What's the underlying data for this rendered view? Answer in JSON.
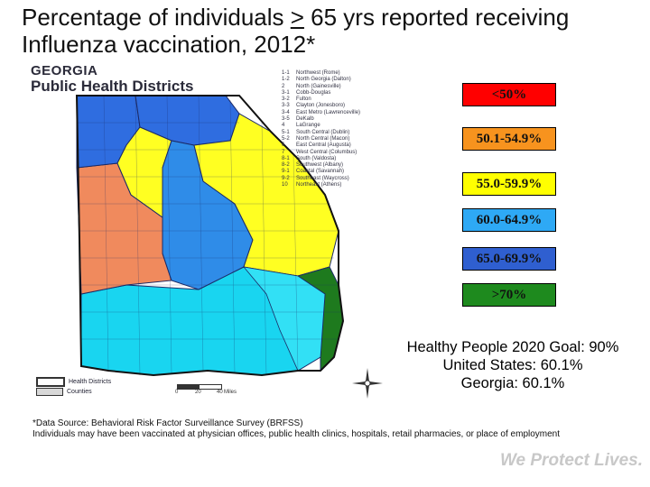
{
  "title": {
    "part1": "Percentage of individuals ",
    "gte": ">",
    "part2": " 65 yrs reported receiving",
    "line2": "Influenza vaccination, 2012*"
  },
  "map": {
    "heading_line1": "GEORGIA",
    "heading_line2": "Public Health Districts",
    "districts": [
      {
        "num": "1-1",
        "name": "Northwest (Rome)"
      },
      {
        "num": "1-2",
        "name": "North Georgia (Dalton)"
      },
      {
        "num": "2",
        "name": "North (Gainesville)"
      },
      {
        "num": "3-1",
        "name": "Cobb-Douglas"
      },
      {
        "num": "3-2",
        "name": "Fulton"
      },
      {
        "num": "3-3",
        "name": "Clayton (Jonesboro)"
      },
      {
        "num": "3-4",
        "name": "East Metro (Lawrenceville)"
      },
      {
        "num": "3-5",
        "name": "DeKalb"
      },
      {
        "num": "4",
        "name": "LaGrange"
      },
      {
        "num": "5-1",
        "name": "South Central (Dublin)"
      },
      {
        "num": "5-2",
        "name": "North Central (Macon)"
      },
      {
        "num": "6",
        "name": "East Central (Augusta)"
      },
      {
        "num": "7",
        "name": "West Central (Columbus)"
      },
      {
        "num": "8-1",
        "name": "South (Valdosta)"
      },
      {
        "num": "8-2",
        "name": "Southwest (Albany)"
      },
      {
        "num": "9-1",
        "name": "Coastal (Savannah)"
      },
      {
        "num": "9-2",
        "name": "Southeast (Waycross)"
      },
      {
        "num": "10",
        "name": "Northeast (Athens)"
      }
    ],
    "key": {
      "health_districts": "Health Districts",
      "counties": "Counties"
    },
    "scale": {
      "t0": "0",
      "t1": "20",
      "t2": "40",
      "unit": "Miles"
    }
  },
  "legend": [
    {
      "label": "<50%",
      "color": "#ff0000"
    },
    {
      "label": "50.1-54.9%",
      "color": "#f7931e"
    },
    {
      "label": "55.0-59.9%",
      "color": "#ffff00"
    },
    {
      "label": "60.0-64.9%",
      "color": "#2ea9f5"
    },
    {
      "label": "65.0-69.9%",
      "color": "#2f5fd0"
    },
    {
      "label": ">70%",
      "color": "#1e8a1e"
    }
  ],
  "stats": {
    "goal": "Healthy People 2020 Goal: 90%",
    "us": "United States: 60.1%",
    "ga": "Georgia: 60.1%"
  },
  "footnote": {
    "source": "*Data Source: Behavioral Risk Factor Surveillance Survey (BRFSS)",
    "note": "Individuals may have been vaccinated at physician offices, public health clinics, hospitals, retail pharmacies, or place of employment"
  },
  "tagline": "We Protect Lives."
}
